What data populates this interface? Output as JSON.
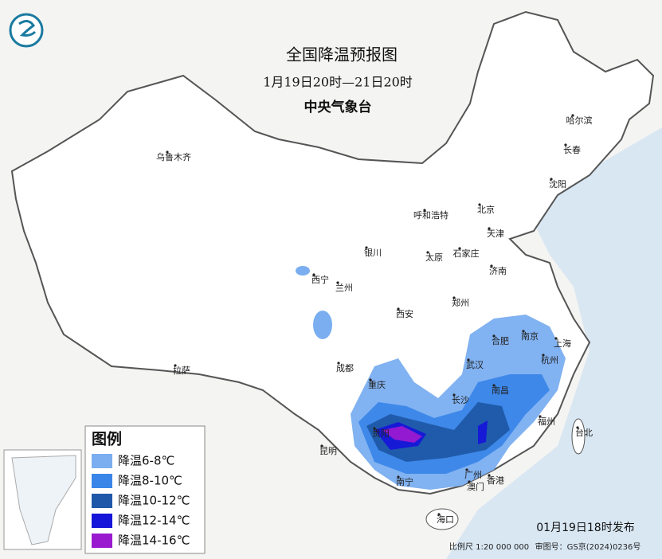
{
  "header": {
    "title": "全国降温预报图",
    "subtitle": "1月19日20时—21日20时",
    "issuer": "中央气象台"
  },
  "legend": {
    "title": "图例",
    "items": [
      {
        "label": "降温6-8℃",
        "color": "#7aaef0"
      },
      {
        "label": "降温8-10℃",
        "color": "#3a86e8"
      },
      {
        "label": "降温10-12℃",
        "color": "#1f58a8"
      },
      {
        "label": "降温12-14℃",
        "color": "#1616d8"
      },
      {
        "label": "降温14-16℃",
        "color": "#9a1ad0"
      }
    ]
  },
  "cities": [
    "乌鲁木齐",
    "哈尔滨",
    "长春",
    "沈阳",
    "呼和浩特",
    "北京",
    "天津",
    "石家庄",
    "太原",
    "银川",
    "西宁",
    "兰州",
    "济南",
    "郑州",
    "西安",
    "合肥",
    "南京",
    "上海",
    "杭州",
    "武汉",
    "成都",
    "重庆",
    "长沙",
    "南昌",
    "福州",
    "台北",
    "贵阳",
    "昆明",
    "南宁",
    "广州",
    "澳门",
    "香港",
    "海口",
    "拉萨"
  ],
  "footer": {
    "issued": "01月19日18时发布",
    "scale": "比例尺  1:20 000 000",
    "approval": "审图号：GS京(2024)0236号"
  }
}
